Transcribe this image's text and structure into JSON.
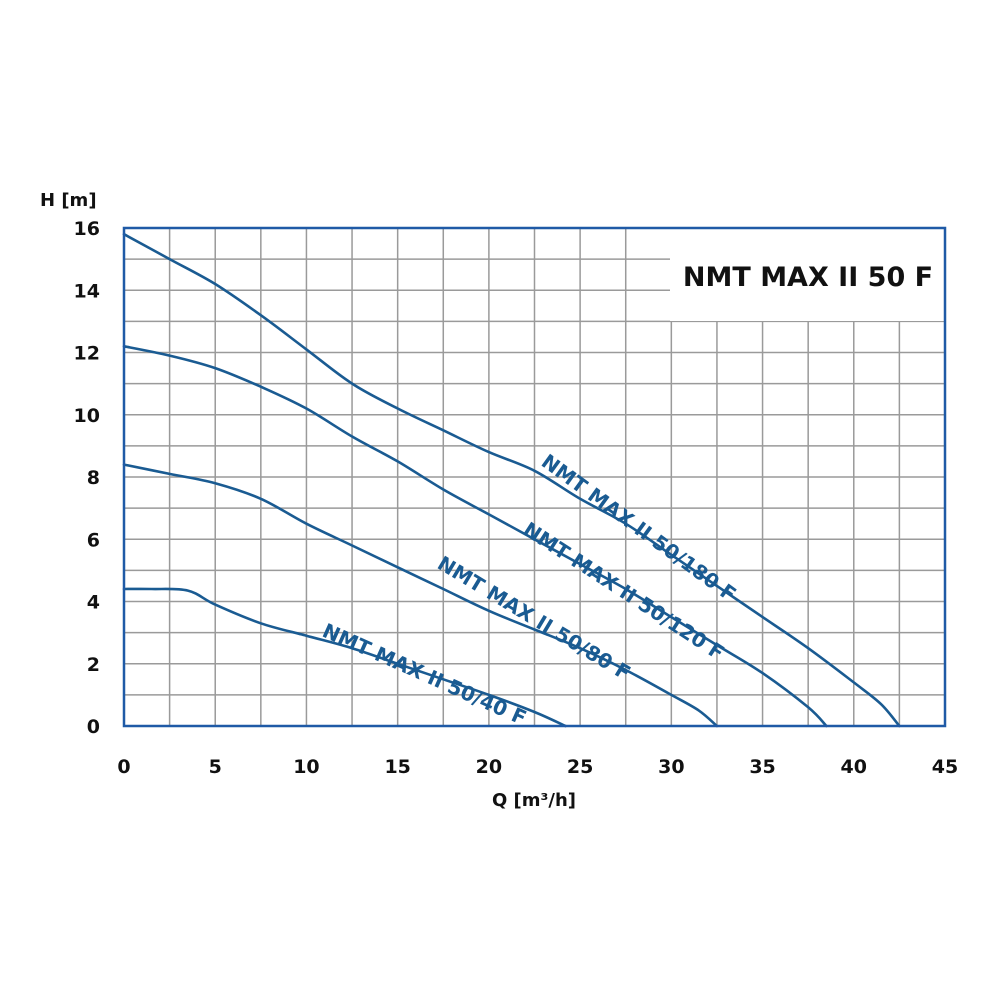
{
  "chart_data": {
    "type": "line",
    "title": "NMT MAX II 50 F",
    "xlabel": "Q [m³/h]",
    "ylabel": "H [m]",
    "xlim": [
      0,
      45
    ],
    "ylim": [
      0,
      16
    ],
    "xticks": [
      0,
      5,
      10,
      15,
      20,
      25,
      30,
      35,
      40,
      45
    ],
    "yticks": [
      0,
      2,
      4,
      6,
      8,
      10,
      12,
      14,
      16
    ],
    "x_minor_step": 2.5,
    "y_minor_step": 1,
    "grid": true,
    "legend": "none",
    "series": [
      {
        "name": "NMT MAX II 50/180 F",
        "x": [
          0,
          2.5,
          5,
          7.5,
          10,
          12.5,
          15,
          17.5,
          20,
          22.5,
          25,
          27.5,
          30,
          32.5,
          35,
          37.5,
          40,
          41.5,
          42.5
        ],
        "y": [
          15.8,
          15.0,
          14.2,
          13.2,
          12.1,
          11.0,
          10.2,
          9.5,
          8.8,
          8.2,
          7.3,
          6.5,
          5.5,
          4.5,
          3.5,
          2.5,
          1.4,
          0.7,
          0
        ]
      },
      {
        "name": "NMT MAX II 50/120 F",
        "x": [
          0,
          2.5,
          5,
          7.5,
          10,
          12.5,
          15,
          17.5,
          20,
          22.5,
          25,
          27.5,
          30,
          32.5,
          35,
          37.5,
          38.5
        ],
        "y": [
          12.2,
          11.9,
          11.5,
          10.9,
          10.2,
          9.3,
          8.5,
          7.6,
          6.8,
          6.0,
          5.2,
          4.4,
          3.5,
          2.6,
          1.7,
          0.6,
          0
        ]
      },
      {
        "name": "NMT MAX II 50/80 F",
        "x": [
          0,
          2.5,
          5,
          7.5,
          10,
          12.5,
          15,
          17.5,
          20,
          22.5,
          25,
          27.5,
          30,
          31.5,
          32.5
        ],
        "y": [
          8.4,
          8.1,
          7.8,
          7.3,
          6.5,
          5.8,
          5.1,
          4.4,
          3.7,
          3.1,
          2.5,
          1.8,
          1.0,
          0.5,
          0
        ]
      },
      {
        "name": "NMT MAX II 50/40 F",
        "x": [
          0,
          1.5,
          3.5,
          5,
          7.5,
          10,
          12.5,
          15,
          17.5,
          20,
          22.5,
          24.2
        ],
        "y": [
          4.4,
          4.4,
          4.35,
          3.9,
          3.3,
          2.9,
          2.5,
          2.0,
          1.5,
          1.0,
          0.45,
          0
        ]
      }
    ],
    "series_label_positions": [
      {
        "x": 22.8,
        "y": 8.4,
        "angle_deg": 36
      },
      {
        "x": 21.8,
        "y": 6.2,
        "angle_deg": 33
      },
      {
        "x": 17.1,
        "y": 5.1,
        "angle_deg": 31
      },
      {
        "x": 10.8,
        "y": 2.9,
        "angle_deg": 24
      }
    ]
  }
}
